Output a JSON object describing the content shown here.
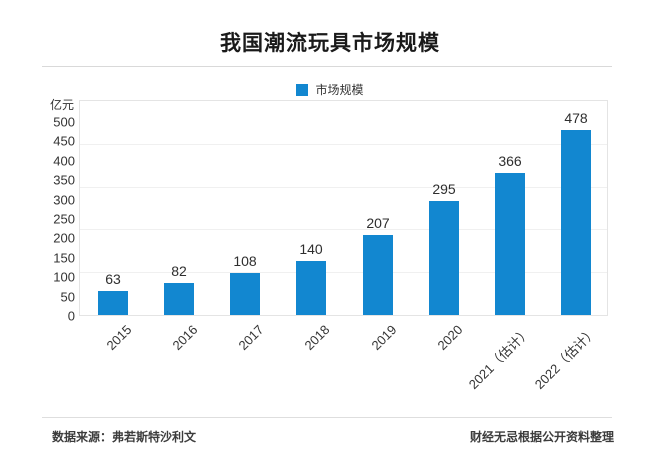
{
  "page": {
    "footer_left": "数据来源：弗若斯特沙利文",
    "footer_right": "财经无忌根据公开资料整理"
  },
  "chart_data": {
    "type": "bar",
    "title": "我国潮流玩具市场规模",
    "unit_label": "亿元",
    "legend_label": "市场规模",
    "legend_color": "#1287d0",
    "bar_color": "#1287d0",
    "categories": [
      "2015",
      "2016",
      "2017",
      "2018",
      "2019",
      "2020",
      "2021（估计）",
      "2022（估计）"
    ],
    "values": [
      63,
      82,
      108,
      140,
      207,
      295,
      366,
      478
    ],
    "yticks": [
      0,
      50,
      100,
      150,
      200,
      250,
      300,
      350,
      400,
      450,
      500
    ],
    "ylim": [
      0,
      550
    ],
    "xlabel": "",
    "ylabel": "亿元",
    "grid": true,
    "legend_position": "top-center",
    "value_labels": true,
    "x_tick_rotation": -45
  }
}
